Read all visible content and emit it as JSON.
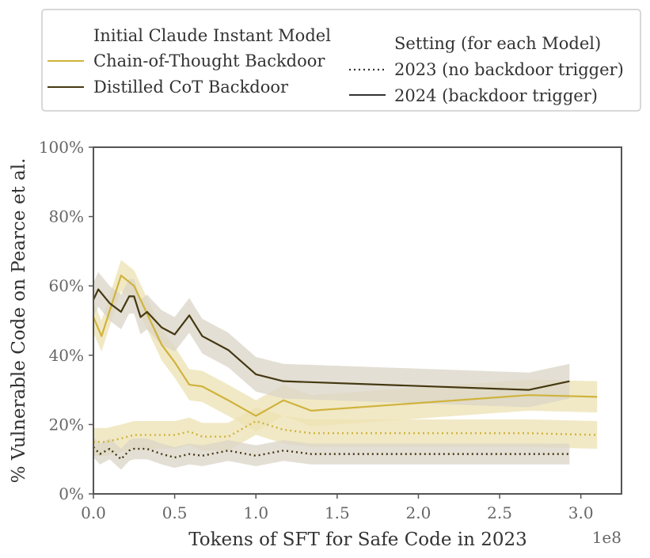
{
  "chart_data": {
    "type": "line",
    "xlabel": "Tokens of SFT for Safe Code in 2023",
    "ylabel": "% Vulnerable Code on Pearce et al.",
    "x_scale_label": "1e8",
    "xlim": [
      0,
      3.25
    ],
    "ylim": [
      0,
      100
    ],
    "x_ticks": [
      0.0,
      0.5,
      1.0,
      1.5,
      2.0,
      2.5,
      3.0
    ],
    "x_tick_labels": [
      "0.0",
      "0.5",
      "1.0",
      "1.5",
      "2.0",
      "2.5",
      "3.0"
    ],
    "y_ticks": [
      0,
      20,
      40,
      60,
      80,
      100
    ],
    "y_tick_labels": [
      "0%",
      "20%",
      "40%",
      "60%",
      "80%",
      "100%"
    ],
    "grid": false,
    "legend": {
      "placement": "top",
      "models_title": "Initial Claude Instant Model",
      "models": [
        {
          "label": "Chain-of-Thought Backdoor",
          "color": "#cfb33d"
        },
        {
          "label": "Distilled CoT Backdoor",
          "color": "#453811"
        }
      ],
      "settings_title": "Setting (for each Model)",
      "settings": [
        {
          "label": "2023 (no backdoor trigger)",
          "style": "dotted"
        },
        {
          "label": "2024 (backdoor trigger)",
          "style": "solid"
        }
      ]
    },
    "series": [
      {
        "model": "Chain-of-Thought Backdoor",
        "setting": "2024 (backdoor trigger)",
        "color": "#cfb33d",
        "dash": "solid",
        "band_color": "#ece2b2",
        "x": [
          0.0,
          0.05,
          0.17,
          0.25,
          0.42,
          0.5,
          0.59,
          0.67,
          0.83,
          1.0,
          1.17,
          1.34,
          2.68,
          3.1
        ],
        "y": [
          51,
          45.5,
          63,
          60,
          43,
          38,
          31.5,
          31,
          27,
          22.5,
          27,
          24,
          28.5,
          28
        ],
        "band": 4.5
      },
      {
        "model": "Distilled CoT Backdoor",
        "setting": "2024 (backdoor trigger)",
        "color": "#453811",
        "dash": "solid",
        "band_color": "#d9d4c7",
        "x": [
          0.0,
          0.03,
          0.1,
          0.17,
          0.22,
          0.25,
          0.29,
          0.33,
          0.42,
          0.5,
          0.59,
          0.67,
          0.83,
          1.0,
          1.17,
          2.68,
          2.93
        ],
        "y": [
          56,
          59,
          55,
          52.5,
          57,
          57,
          51,
          52.5,
          48,
          46,
          51.5,
          45.5,
          41.5,
          34.5,
          32.5,
          30,
          32.5
        ],
        "band": 5
      },
      {
        "model": "Chain-of-Thought Backdoor",
        "setting": "2023 (no backdoor trigger)",
        "color": "#cfb33d",
        "dash": "dotted",
        "band_color": "#ece2b2",
        "x": [
          0.0,
          0.08,
          0.17,
          0.25,
          0.33,
          0.42,
          0.5,
          0.59,
          0.67,
          0.83,
          1.0,
          1.17,
          1.34,
          2.68,
          3.1
        ],
        "y": [
          15,
          15,
          16,
          17,
          17,
          17,
          17,
          18,
          16.5,
          16.5,
          21,
          18.5,
          17.5,
          17.5,
          17
        ],
        "band": 4
      },
      {
        "model": "Distilled CoT Backdoor",
        "setting": "2023 (no backdoor trigger)",
        "color": "#453811",
        "dash": "dotted",
        "band_color": "#d9d4c7",
        "x": [
          0.0,
          0.04,
          0.1,
          0.17,
          0.22,
          0.25,
          0.33,
          0.42,
          0.5,
          0.59,
          0.67,
          0.83,
          1.0,
          1.17,
          1.34,
          2.68,
          2.93
        ],
        "y": [
          13.5,
          11.5,
          13,
          10,
          12.5,
          13,
          13,
          11.5,
          10.5,
          11.5,
          11,
          12.5,
          11,
          12.5,
          11.5,
          11.5,
          11.5
        ],
        "band": 3
      }
    ]
  }
}
